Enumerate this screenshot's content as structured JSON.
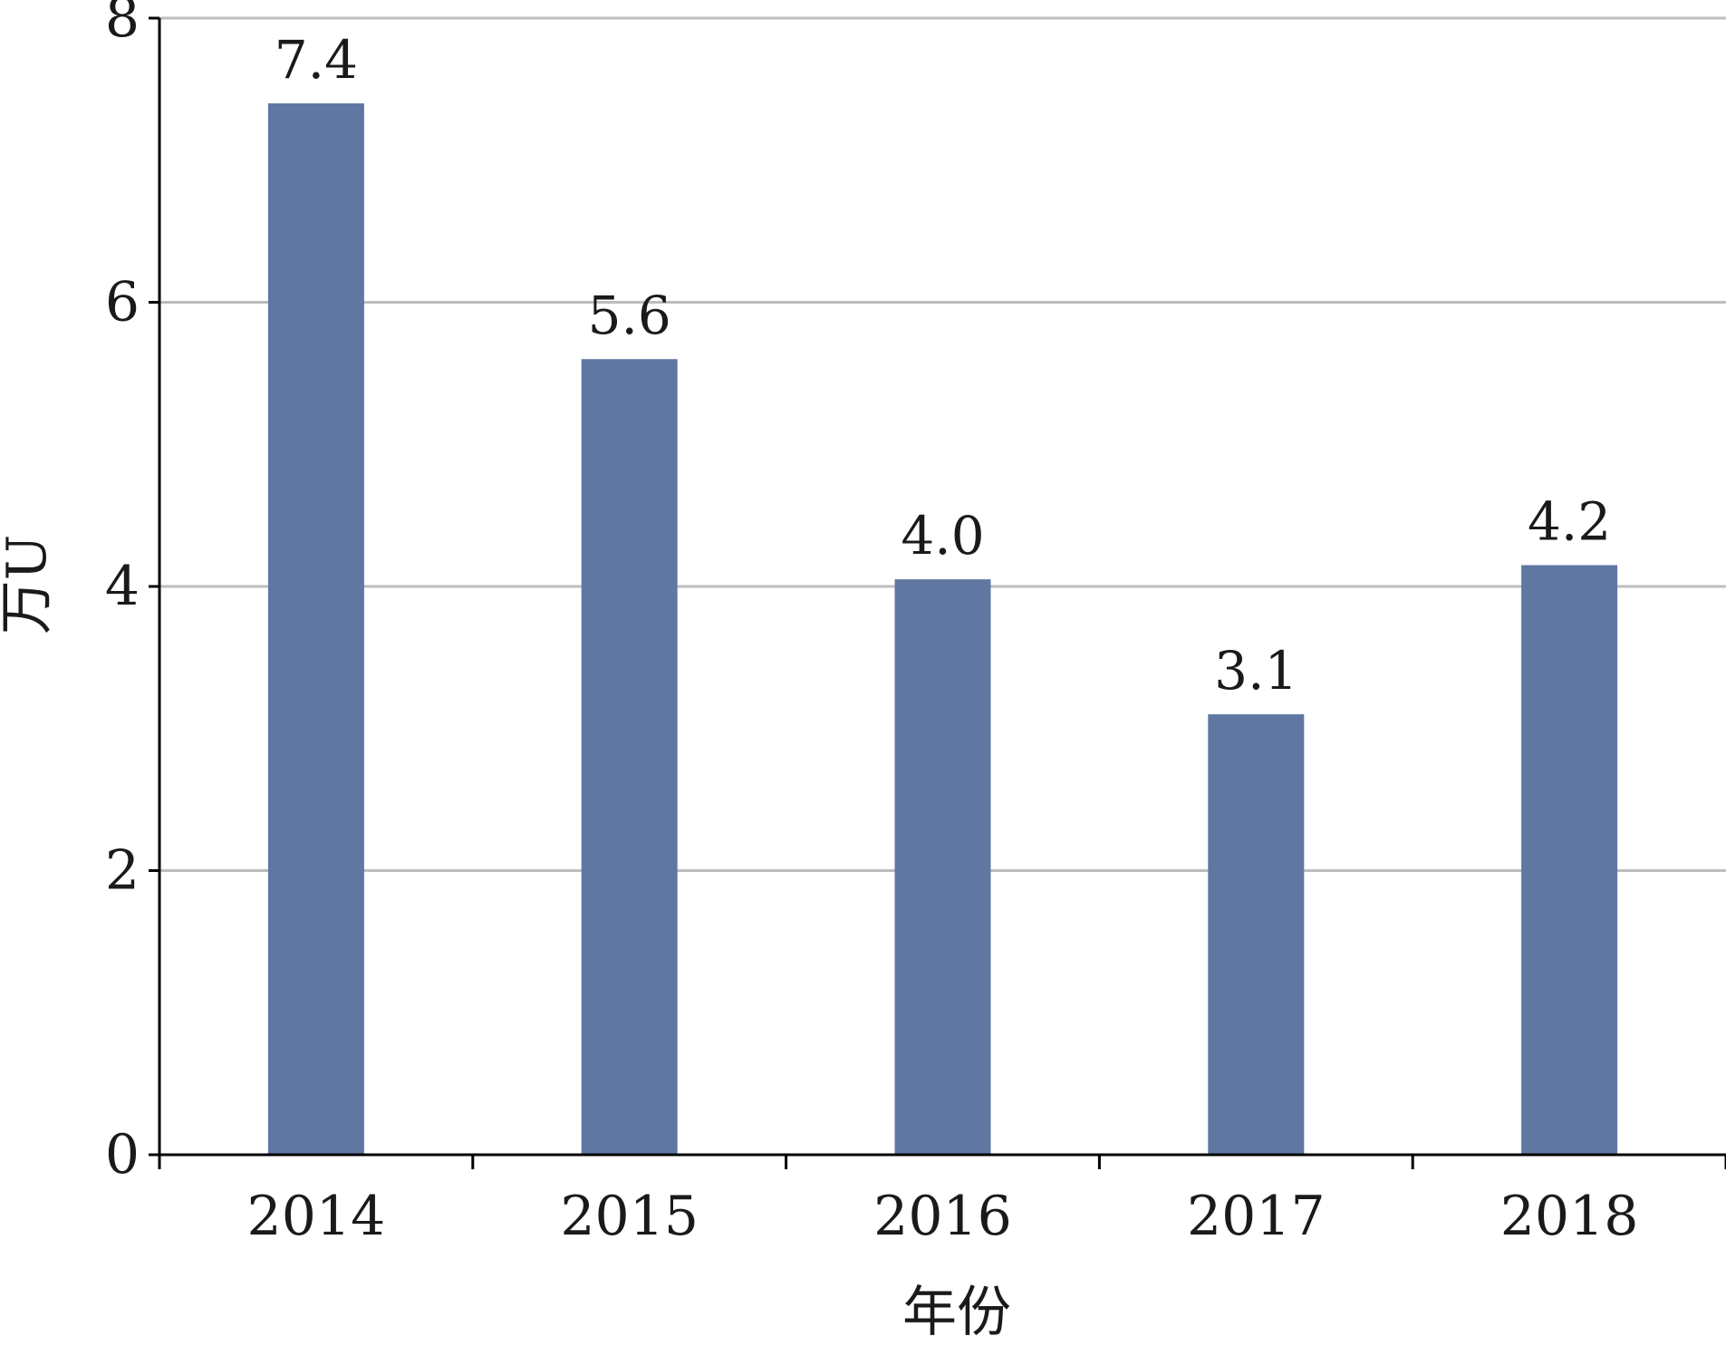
{
  "chart_data": {
    "type": "bar",
    "categories": [
      "2014",
      "2015",
      "2016",
      "2017",
      "2018"
    ],
    "values": [
      7.4,
      5.6,
      4.05,
      3.1,
      4.15
    ],
    "data_labels": [
      "7.4",
      "5.6",
      "4.0",
      "3.1",
      "4.2"
    ],
    "xlabel": "年份",
    "ylabel": "万U",
    "ylim": [
      0,
      8
    ],
    "yticks": [
      "0",
      "2",
      "4",
      "6",
      "8"
    ],
    "grid": true,
    "legend": "none",
    "bar_color": "#5f77a1",
    "grid_color": "#bdbdbd",
    "axis_color": "#000000"
  }
}
